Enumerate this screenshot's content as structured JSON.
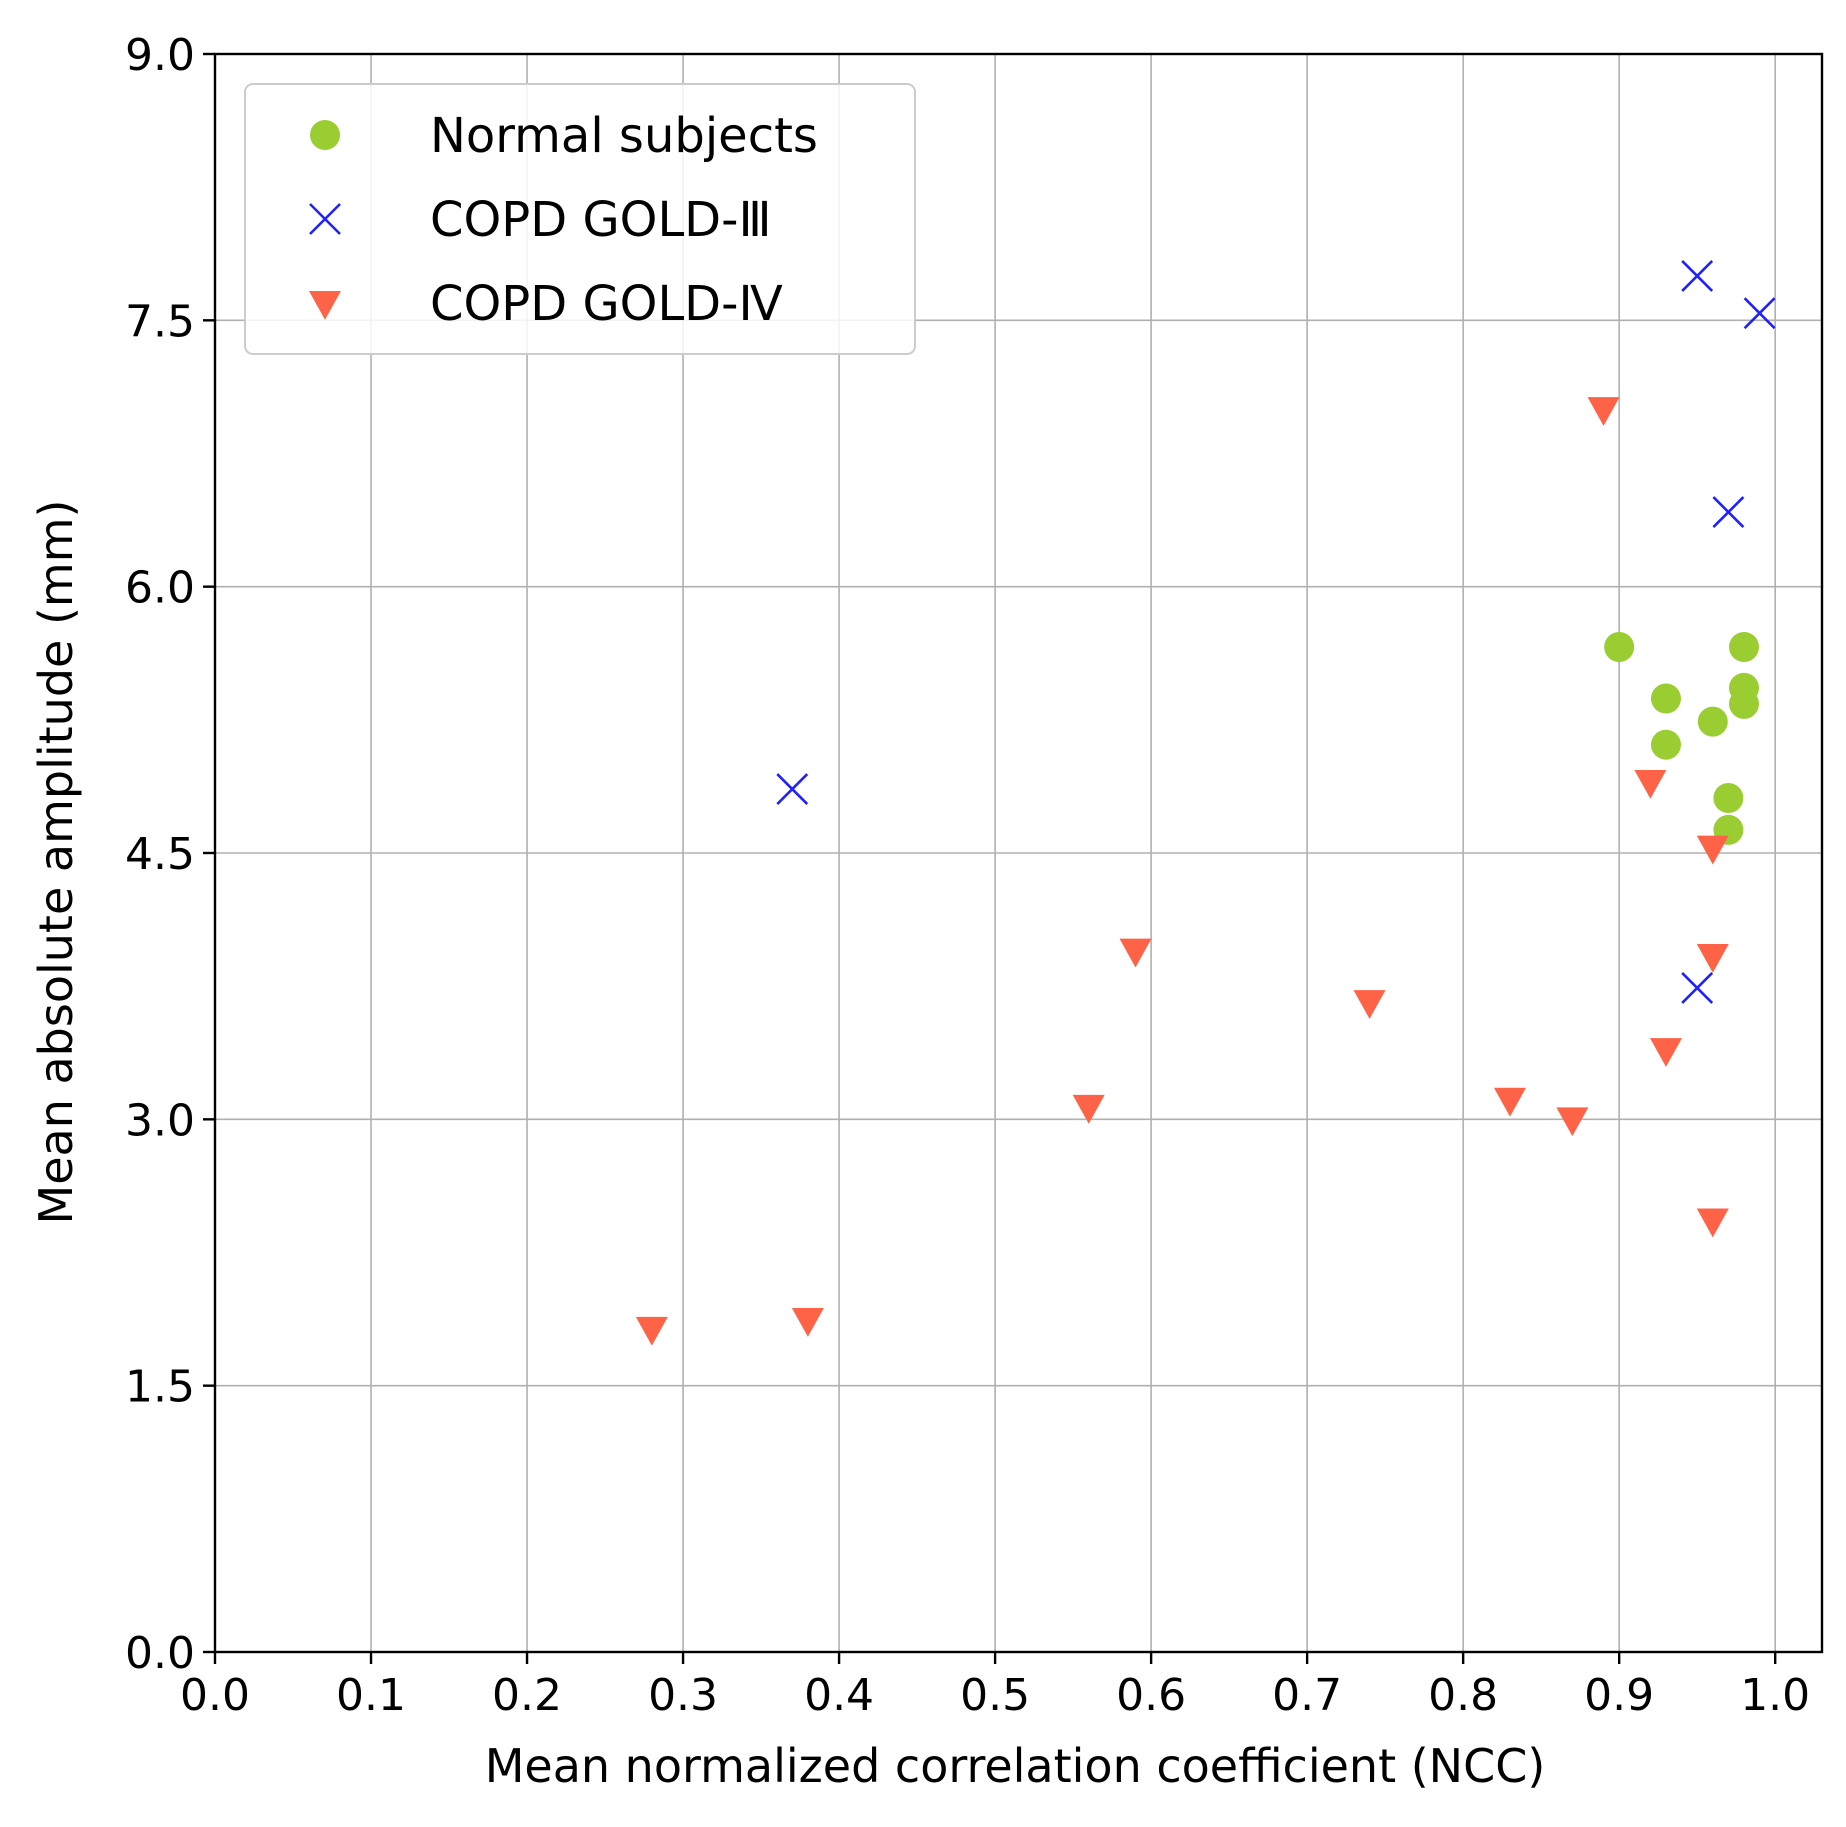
{
  "chart_data": {
    "type": "scatter",
    "title": "",
    "xlabel": "Mean normalized correlation coefficient (NCC)",
    "ylabel": "Mean absolute amplitude (mm)",
    "xlim": [
      0.0,
      1.03
    ],
    "ylim": [
      0.0,
      9.0
    ],
    "x_ticks": [
      "0.0",
      "0.1",
      "0.2",
      "0.3",
      "0.4",
      "0.5",
      "0.6",
      "0.7",
      "0.8",
      "0.9",
      "1.0"
    ],
    "y_ticks": [
      "0.0",
      "1.5",
      "3.0",
      "4.5",
      "6.0",
      "7.5",
      "9.0"
    ],
    "grid": true,
    "legend_position": "top-left",
    "series": [
      {
        "name": "Normal subjects",
        "marker": "circle",
        "color": "#9acd32",
        "points": [
          {
            "x": 0.9,
            "y": 5.66
          },
          {
            "x": 0.93,
            "y": 5.37
          },
          {
            "x": 0.93,
            "y": 5.11
          },
          {
            "x": 0.96,
            "y": 5.24
          },
          {
            "x": 0.97,
            "y": 4.81
          },
          {
            "x": 0.97,
            "y": 4.63
          },
          {
            "x": 0.98,
            "y": 5.66
          },
          {
            "x": 0.98,
            "y": 5.43
          },
          {
            "x": 0.98,
            "y": 5.34
          }
        ]
      },
      {
        "name": "COPD GOLD-Ⅲ",
        "marker": "x",
        "color": "#2020ff",
        "points": [
          {
            "x": 0.37,
            "y": 4.86
          },
          {
            "x": 0.95,
            "y": 7.75
          },
          {
            "x": 0.99,
            "y": 7.54
          },
          {
            "x": 0.97,
            "y": 6.42
          },
          {
            "x": 0.95,
            "y": 3.74
          }
        ]
      },
      {
        "name": "COPD GOLD-Ⅳ",
        "marker": "triangle-down",
        "color": "#ff6347",
        "points": [
          {
            "x": 0.28,
            "y": 1.82
          },
          {
            "x": 0.38,
            "y": 1.87
          },
          {
            "x": 0.56,
            "y": 3.07
          },
          {
            "x": 0.59,
            "y": 3.95
          },
          {
            "x": 0.74,
            "y": 3.66
          },
          {
            "x": 0.83,
            "y": 3.11
          },
          {
            "x": 0.87,
            "y": 3.0
          },
          {
            "x": 0.89,
            "y": 7.0
          },
          {
            "x": 0.92,
            "y": 4.9
          },
          {
            "x": 0.93,
            "y": 3.39
          },
          {
            "x": 0.96,
            "y": 4.53
          },
          {
            "x": 0.96,
            "y": 3.92
          },
          {
            "x": 0.96,
            "y": 2.43
          }
        ]
      }
    ]
  }
}
